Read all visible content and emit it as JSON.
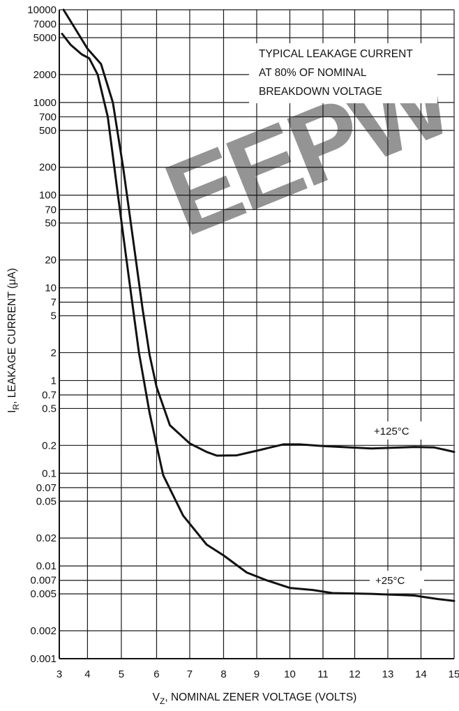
{
  "watermark": {
    "text": "EEPW",
    "color": "#e8474d"
  },
  "chart_data": {
    "type": "line",
    "xlabel_main": "V",
    "xlabel_sub": "Z",
    "xlabel_rest": ", NOMINAL ZENER VOLTAGE (VOLTS)",
    "ylabel_main": "I",
    "ylabel_sub": "R",
    "ylabel_rest": ", LEAKAGE CURRENT (μA)",
    "xlim": [
      3,
      15
    ],
    "ylim": [
      0.001,
      10000
    ],
    "yscale": "log",
    "grid": true,
    "x_ticks": [
      3,
      4,
      5,
      6,
      7,
      8,
      9,
      10,
      11,
      12,
      13,
      14,
      15
    ],
    "y_ticks": [
      {
        "v": 10000,
        "label": "10000"
      },
      {
        "v": 7000,
        "label": "7000"
      },
      {
        "v": 5000,
        "label": "5000"
      },
      {
        "v": 2000,
        "label": "2000"
      },
      {
        "v": 1000,
        "label": "1000"
      },
      {
        "v": 700,
        "label": "700"
      },
      {
        "v": 500,
        "label": "500"
      },
      {
        "v": 200,
        "label": "200"
      },
      {
        "v": 100,
        "label": "100"
      },
      {
        "v": 70,
        "label": "70"
      },
      {
        "v": 50,
        "label": "50"
      },
      {
        "v": 20,
        "label": "20"
      },
      {
        "v": 10,
        "label": "10"
      },
      {
        "v": 7,
        "label": "7"
      },
      {
        "v": 5,
        "label": "5"
      },
      {
        "v": 2,
        "label": "2"
      },
      {
        "v": 1,
        "label": "1"
      },
      {
        "v": 0.7,
        "label": "0.7"
      },
      {
        "v": 0.5,
        "label": "0.5"
      },
      {
        "v": 0.2,
        "label": "0.2"
      },
      {
        "v": 0.1,
        "label": "0.1"
      },
      {
        "v": 0.07,
        "label": "0.07"
      },
      {
        "v": 0.05,
        "label": "0.05"
      },
      {
        "v": 0.02,
        "label": "0.02"
      },
      {
        "v": 0.01,
        "label": "0.01"
      },
      {
        "v": 0.007,
        "label": "0.007"
      },
      {
        "v": 0.005,
        "label": "0.005"
      },
      {
        "v": 0.002,
        "label": "0.002"
      },
      {
        "v": 0.001,
        "label": "0.001"
      }
    ],
    "annotation": [
      "TYPICAL LEAKAGE CURRENT",
      "AT 80% OF NOMINAL",
      "BREAKDOWN VOLTAGE"
    ],
    "series": [
      {
        "name": "+125°C",
        "points": [
          [
            3.15,
            10000
          ],
          [
            3.6,
            6000
          ],
          [
            4.0,
            3800
          ],
          [
            4.4,
            2600
          ],
          [
            4.75,
            1000
          ],
          [
            5.05,
            200
          ],
          [
            5.35,
            30
          ],
          [
            5.6,
            6
          ],
          [
            5.8,
            1.9
          ],
          [
            6.0,
            0.85
          ],
          [
            6.4,
            0.33
          ],
          [
            7.0,
            0.21
          ],
          [
            7.5,
            0.17
          ],
          [
            7.8,
            0.155
          ],
          [
            8.4,
            0.156
          ],
          [
            9.0,
            0.175
          ],
          [
            9.8,
            0.205
          ],
          [
            10.3,
            0.205
          ],
          [
            11.0,
            0.197
          ],
          [
            12.5,
            0.185
          ],
          [
            13.8,
            0.192
          ],
          [
            14.4,
            0.19
          ],
          [
            14.7,
            0.18
          ],
          [
            15.0,
            0.17
          ]
        ]
      },
      {
        "name": "+25°C",
        "points": [
          [
            3.1,
            5500
          ],
          [
            3.4,
            4200
          ],
          [
            3.8,
            3300
          ],
          [
            4.05,
            3000
          ],
          [
            4.3,
            2000
          ],
          [
            4.6,
            700
          ],
          [
            4.9,
            100
          ],
          [
            5.2,
            14
          ],
          [
            5.5,
            2
          ],
          [
            5.8,
            0.45
          ],
          [
            6.0,
            0.2
          ],
          [
            6.2,
            0.095
          ],
          [
            6.8,
            0.035
          ],
          [
            7.5,
            0.017
          ],
          [
            8.0,
            0.013
          ],
          [
            8.7,
            0.0085
          ],
          [
            9.3,
            0.007
          ],
          [
            10.0,
            0.0058
          ],
          [
            10.7,
            0.0055
          ],
          [
            11.3,
            0.0051
          ],
          [
            12.5,
            0.005
          ],
          [
            13.8,
            0.0048
          ],
          [
            14.5,
            0.0044
          ],
          [
            15.0,
            0.0042
          ]
        ]
      }
    ]
  }
}
